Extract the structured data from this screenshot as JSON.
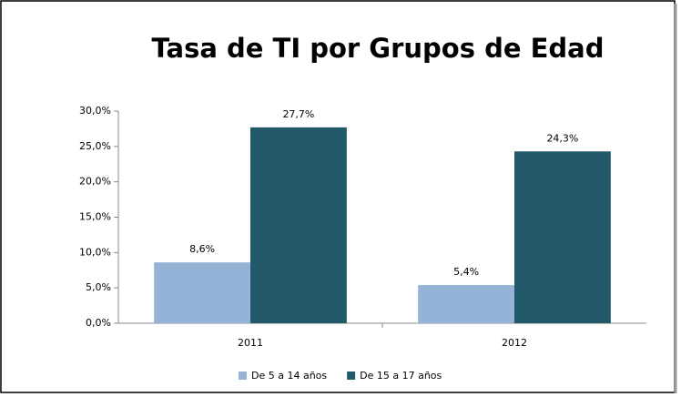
{
  "chart_data": {
    "type": "bar",
    "title": "Tasa de TI por Grupos de Edad",
    "categories": [
      "2011",
      "2012"
    ],
    "series": [
      {
        "name": "De 5 a 14 años",
        "color": "#95b3d7",
        "values": [
          8.6,
          5.4
        ],
        "value_labels": [
          "8,6%",
          "5,4%"
        ]
      },
      {
        "name": "De 15 a 17 años",
        "color": "#215968",
        "values": [
          27.7,
          24.3
        ],
        "value_labels": [
          "27,7%",
          "24,3%"
        ]
      }
    ],
    "ylim": [
      0,
      30
    ],
    "yticks": [
      {
        "value": 0,
        "label": "0,0%"
      },
      {
        "value": 5,
        "label": "5,0%"
      },
      {
        "value": 10,
        "label": "10,0%"
      },
      {
        "value": 15,
        "label": "15,0%"
      },
      {
        "value": 20,
        "label": "20,0%"
      },
      {
        "value": 25,
        "label": "25,0%"
      },
      {
        "value": 30,
        "label": "30,0%"
      }
    ],
    "grid": false,
    "legend": "bottom"
  }
}
